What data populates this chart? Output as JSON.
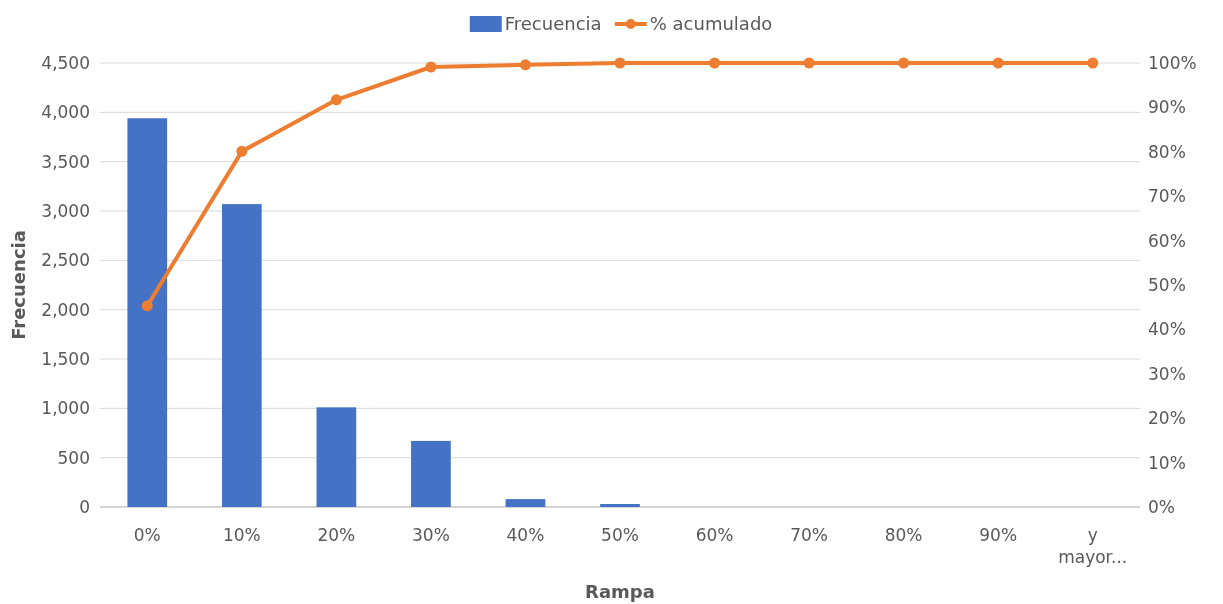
{
  "chart_data": {
    "type": "bar",
    "xlabel": "Rampa",
    "ylabel": "Frecuencia",
    "categories": [
      "0%",
      "10%",
      "20%",
      "30%",
      "40%",
      "50%",
      "60%",
      "70%",
      "80%",
      "90%",
      "y mayor..."
    ],
    "series": [
      {
        "name": "Frecuencia",
        "color": "#4472c4",
        "values": [
          3940,
          3070,
          1010,
          670,
          80,
          30,
          0,
          0,
          0,
          0,
          0
        ]
      },
      {
        "name": "% acumulado",
        "type": "line",
        "axis": "y2",
        "color": "#ed7d31",
        "marker": "circle",
        "values": [
          45.3,
          80.1,
          91.7,
          99.1,
          99.6,
          100,
          100,
          100,
          100,
          100,
          100
        ]
      }
    ],
    "ylim": [
      0,
      4500
    ],
    "yticks": [
      {
        "value": 0,
        "label": "0"
      },
      {
        "value": 500,
        "label": "500"
      },
      {
        "value": 1000,
        "label": "1,000"
      },
      {
        "value": 1500,
        "label": "1,500"
      },
      {
        "value": 2000,
        "label": "2,000"
      },
      {
        "value": 2500,
        "label": "2,500"
      },
      {
        "value": 3000,
        "label": "3,000"
      },
      {
        "value": 3500,
        "label": "3,500"
      },
      {
        "value": 4000,
        "label": "4,000"
      },
      {
        "value": 4500,
        "label": "4,500"
      }
    ],
    "y2lim": [
      0,
      100
    ],
    "y2ticks": [
      {
        "value": 0,
        "label": "0%"
      },
      {
        "value": 10,
        "label": "10%"
      },
      {
        "value": 20,
        "label": "20%"
      },
      {
        "value": 30,
        "label": "30%"
      },
      {
        "value": 40,
        "label": "40%"
      },
      {
        "value": 50,
        "label": "50%"
      },
      {
        "value": 60,
        "label": "60%"
      },
      {
        "value": 70,
        "label": "70%"
      },
      {
        "value": 80,
        "label": "80%"
      },
      {
        "value": 90,
        "label": "90%"
      },
      {
        "value": 100,
        "label": "100%"
      }
    ],
    "grid": "y",
    "legend": "top"
  }
}
